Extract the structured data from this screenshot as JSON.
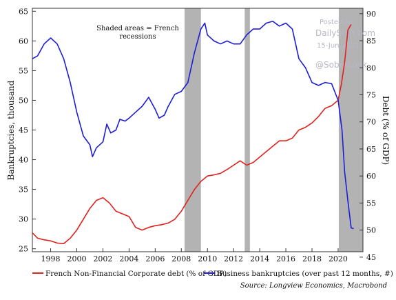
{
  "chart_data": {
    "type": "line",
    "annotation": [
      "Shaded areas = French",
      "recessions"
    ],
    "x_ticks": [
      "1998",
      "2000",
      "2002",
      "2004",
      "2006",
      "2008",
      "2010",
      "2012",
      "2014",
      "2016",
      "2018",
      "2020"
    ],
    "left_axis": {
      "label": "Bankruptcies, thousand",
      "ticks": [
        25,
        30,
        35,
        40,
        45,
        50,
        55,
        60,
        65
      ],
      "ylim": [
        24.5,
        65.5
      ]
    },
    "right_axis": {
      "label": "Debt (% of GDP)",
      "ticks": [
        45,
        50,
        55,
        60,
        65,
        70,
        75,
        80,
        85,
        90
      ],
      "ylim": [
        46,
        91
      ]
    },
    "xlim": [
      1996.6,
      2021.9
    ],
    "recessions": [
      [
        2008.25,
        2009.5
      ],
      [
        2012.85,
        2013.25
      ],
      [
        2020.05,
        2021.9
      ]
    ],
    "grid": false,
    "legend_position": "bottom",
    "series": [
      {
        "name": "French Non-Financial Corporate debt (% of GDP)",
        "axis": "right",
        "color": "#e0211d",
        "points": [
          [
            1996.6,
            49.5
          ],
          [
            1997,
            48.5
          ],
          [
            1997.5,
            48.2
          ],
          [
            1998,
            48
          ],
          [
            1998.5,
            47.6
          ],
          [
            1999,
            47.5
          ],
          [
            1999.5,
            48.5
          ],
          [
            2000,
            50
          ],
          [
            2000.5,
            52
          ],
          [
            2001,
            54
          ],
          [
            2001.5,
            55.5
          ],
          [
            2002,
            56
          ],
          [
            2002.5,
            55
          ],
          [
            2003,
            53.5
          ],
          [
            2003.5,
            53
          ],
          [
            2004,
            52.5
          ],
          [
            2004.5,
            50.5
          ],
          [
            2005,
            50
          ],
          [
            2005.5,
            50.5
          ],
          [
            2006,
            50.8
          ],
          [
            2006.5,
            51
          ],
          [
            2007,
            51.3
          ],
          [
            2007.5,
            52
          ],
          [
            2008,
            53.5
          ],
          [
            2008.5,
            55.5
          ],
          [
            2009,
            57.5
          ],
          [
            2009.5,
            59
          ],
          [
            2010,
            60
          ],
          [
            2010.5,
            60.2
          ],
          [
            2011,
            60.5
          ],
          [
            2011.5,
            61.2
          ],
          [
            2012,
            62
          ],
          [
            2012.5,
            62.8
          ],
          [
            2013,
            62
          ],
          [
            2013.5,
            62.5
          ],
          [
            2014,
            63.5
          ],
          [
            2014.5,
            64.5
          ],
          [
            2015,
            65.5
          ],
          [
            2015.5,
            66.5
          ],
          [
            2016,
            66.5
          ],
          [
            2016.5,
            67
          ],
          [
            2017,
            68.5
          ],
          [
            2017.5,
            69
          ],
          [
            2018,
            69.8
          ],
          [
            2018.5,
            71
          ],
          [
            2019,
            72.5
          ],
          [
            2019.5,
            73
          ],
          [
            2020,
            74
          ],
          [
            2020.25,
            77
          ],
          [
            2020.5,
            81
          ],
          [
            2020.75,
            87
          ],
          [
            2021,
            88
          ]
        ]
      },
      {
        "name": "Business bankruptcies (over past 12 months, #)",
        "axis": "left",
        "color": "#1c1cd9",
        "points": [
          [
            1996.6,
            57
          ],
          [
            1997,
            57.5
          ],
          [
            1997.5,
            59.5
          ],
          [
            1998,
            60.5
          ],
          [
            1998.5,
            59.5
          ],
          [
            1999,
            57
          ],
          [
            1999.5,
            53
          ],
          [
            2000,
            48
          ],
          [
            2000.5,
            44
          ],
          [
            2001,
            42.5
          ],
          [
            2001.2,
            40.5
          ],
          [
            2001.5,
            42
          ],
          [
            2002,
            43
          ],
          [
            2002.3,
            46
          ],
          [
            2002.6,
            44.5
          ],
          [
            2003,
            45
          ],
          [
            2003.3,
            46.8
          ],
          [
            2003.7,
            46.5
          ],
          [
            2004,
            47
          ],
          [
            2004.5,
            48
          ],
          [
            2005,
            49
          ],
          [
            2005.5,
            50.5
          ],
          [
            2006,
            48.5
          ],
          [
            2006.3,
            47
          ],
          [
            2006.7,
            47.5
          ],
          [
            2007,
            49
          ],
          [
            2007.5,
            51
          ],
          [
            2008,
            51.5
          ],
          [
            2008.5,
            53
          ],
          [
            2009,
            58
          ],
          [
            2009.5,
            62
          ],
          [
            2009.8,
            63
          ],
          [
            2010,
            61
          ],
          [
            2010.5,
            60
          ],
          [
            2011,
            59.5
          ],
          [
            2011.5,
            60
          ],
          [
            2012,
            59.5
          ],
          [
            2012.5,
            59.5
          ],
          [
            2013,
            61
          ],
          [
            2013.5,
            62
          ],
          [
            2014,
            62
          ],
          [
            2014.5,
            63
          ],
          [
            2015,
            63.3
          ],
          [
            2015.5,
            62.5
          ],
          [
            2016,
            63
          ],
          [
            2016.5,
            62
          ],
          [
            2017,
            57
          ],
          [
            2017.5,
            55.5
          ],
          [
            2018,
            53
          ],
          [
            2018.5,
            52.5
          ],
          [
            2019,
            53
          ],
          [
            2019.5,
            52.8
          ],
          [
            2020,
            50
          ],
          [
            2020.3,
            45
          ],
          [
            2020.5,
            38
          ],
          [
            2020.75,
            33
          ],
          [
            2021,
            28.5
          ],
          [
            2021.2,
            28.4
          ]
        ]
      }
    ]
  },
  "watermark": {
    "posted_on": "Posted on",
    "site": "DailyShot.com",
    "date": "15-Jun-2021",
    "handle": "@SoberLook"
  },
  "source": "Source: Longview Economics, Macrobond"
}
